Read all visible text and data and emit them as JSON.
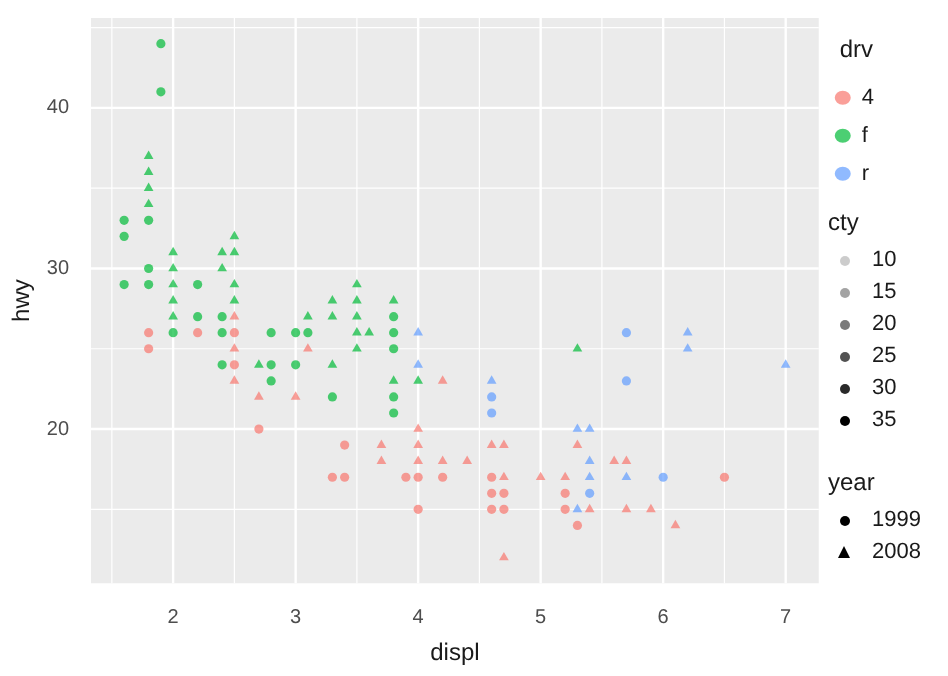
{
  "chart_data": {
    "type": "scatter",
    "xlabel": "displ",
    "ylabel": "hwy",
    "legend_title": "drv",
    "annotations": [
      "cty",
      "10",
      "15",
      "20",
      "25",
      "30",
      "35",
      "year",
      "1999",
      "2008"
    ],
    "xlim": [
      1.33,
      7.27
    ],
    "ylim": [
      10.4,
      45.6
    ],
    "xticks": [
      2,
      3,
      4,
      5,
      6,
      7
    ],
    "yticks": [
      20,
      30,
      40
    ],
    "grid": true,
    "legend": "right",
    "series": [
      {
        "name": "4",
        "color": "#f8766d",
        "marker": "circle",
        "x": [
          1.8,
          1.8,
          2.2,
          2.5,
          2.5,
          2.7,
          3.4,
          3.3,
          3.4,
          3.9,
          4.0,
          4.2,
          4.6,
          4.6,
          4.7,
          5.2,
          4.6,
          4.7,
          5.2,
          4.0,
          6.5,
          5.3
        ],
        "values": [
          26,
          25,
          26,
          26,
          24,
          20,
          19,
          17,
          17,
          17,
          17,
          17,
          17,
          16,
          16,
          16,
          15,
          15,
          15,
          15,
          17,
          14
        ]
      },
      {
        "color": "#f8766d",
        "marker": "triangle",
        "x": [
          2.5,
          2.5,
          2.5,
          2.7,
          3.0,
          3.1,
          4.0,
          4.2,
          3.7,
          4.0,
          4.6,
          4.7,
          3.7,
          4.0,
          4.2,
          4.4,
          4.7,
          5.0,
          5.2,
          4.7,
          5.3,
          5.6,
          5.7,
          5.4,
          5.7,
          5.9,
          6.1
        ],
        "values": [
          27,
          25,
          23,
          22,
          22,
          25,
          20,
          23,
          19,
          19,
          19,
          19,
          18,
          18,
          18,
          18,
          17,
          17,
          17,
          12,
          19,
          18,
          18,
          15,
          15,
          15,
          14
        ]
      },
      {
        "name": "f",
        "color": "#00ba38",
        "marker": "circle",
        "x": [
          1.6,
          1.6,
          1.6,
          1.8,
          1.8,
          1.8,
          1.9,
          1.9,
          2.0,
          2.2,
          2.2,
          2.4,
          2.4,
          2.4,
          2.8,
          3.0,
          3.1,
          2.8,
          3.0,
          2.8,
          3.3,
          3.8,
          3.8,
          3.8,
          3.8,
          3.8
        ],
        "values": [
          33,
          32,
          29,
          33,
          30,
          29,
          44,
          41,
          26,
          29,
          27,
          27,
          26,
          24,
          26,
          26,
          26,
          24,
          24,
          23,
          22,
          27,
          26,
          25,
          22,
          21
        ]
      },
      {
        "color": "#00ba38",
        "marker": "triangle",
        "x": [
          1.8,
          1.8,
          1.8,
          1.8,
          2.0,
          2.0,
          2.0,
          2.0,
          2.0,
          2.4,
          2.4,
          2.5,
          2.5,
          2.5,
          2.5,
          3.1,
          3.3,
          3.3,
          3.3,
          3.5,
          3.5,
          3.5,
          3.5,
          3.5,
          3.6,
          3.8,
          3.8,
          4.0,
          5.3,
          2.7
        ],
        "values": [
          37,
          36,
          35,
          34,
          31,
          30,
          29,
          28,
          27,
          31,
          30,
          32,
          31,
          29,
          28,
          27,
          28,
          27,
          24,
          29,
          28,
          27,
          26,
          25,
          26,
          28,
          23,
          23,
          25,
          24
        ]
      },
      {
        "name": "r",
        "color": "#619cff",
        "marker": "circle",
        "x": [
          4.6,
          4.6,
          5.4,
          5.7,
          5.7,
          6.0
        ],
        "values": [
          22,
          21,
          16,
          26,
          23,
          17
        ]
      },
      {
        "color": "#619cff",
        "marker": "triangle",
        "x": [
          4.0,
          4.0,
          4.6,
          5.3,
          5.4,
          5.4,
          5.4,
          5.7,
          5.3,
          6.2,
          6.2,
          7.0
        ],
        "values": [
          26,
          24,
          23,
          20,
          20,
          18,
          17,
          17,
          15,
          26,
          25,
          24
        ]
      }
    ]
  }
}
